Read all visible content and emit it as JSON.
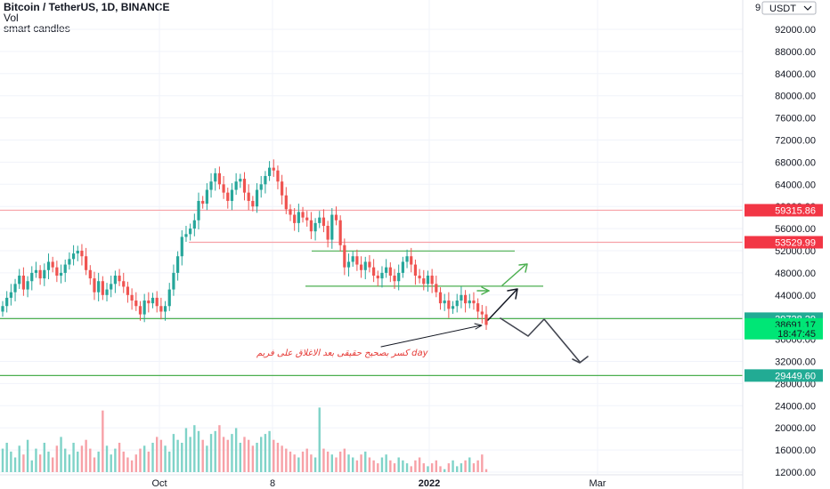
{
  "header": {
    "title": "Bitcoin / TetherUS, 1D, BINANCE",
    "indicator_1": "Vol",
    "indicator_2": "smart candles"
  },
  "chart_data": {
    "type": "candlestick",
    "currency_label": "USDT",
    "ylim": [
      10000,
      96000
    ],
    "y_ticks": [
      "12000.00",
      "16000.00",
      "20000.00",
      "24000.00",
      "28000.00",
      "32000.00",
      "36000.00",
      "40000.00",
      "44000.00",
      "48000.00",
      "52000.00",
      "56000.00",
      "60000.00",
      "64000.00",
      "68000.00",
      "72000.00",
      "76000.00",
      "80000.00",
      "84000.00",
      "88000.00",
      "92000.00"
    ],
    "x_ticks": [
      {
        "label": "Oct",
        "bold": false
      },
      {
        "label": "8",
        "bold": false
      },
      {
        "label": "2022",
        "bold": true
      },
      {
        "label": "Mar",
        "bold": false
      }
    ],
    "price_tags": [
      {
        "label": "59315.86",
        "value": 59316,
        "color": "#f23645"
      },
      {
        "label": "53529.99",
        "value": 53530,
        "color": "#f23645"
      },
      {
        "label": "39728.29",
        "value": 39728,
        "color": "#22ab94"
      },
      {
        "label": "38691.17",
        "value": 38691,
        "color": "#00e676"
      },
      {
        "label": "18:47:45",
        "value": 37100,
        "color": "#00e676"
      },
      {
        "label": "29449.60",
        "value": 29450,
        "color": "#22ab94"
      }
    ],
    "horizontal_levels": [
      {
        "value": 59316,
        "color": "#f7a1a7"
      },
      {
        "value": 53530,
        "color": "#f7a1a7"
      },
      {
        "value": 51950,
        "color": "#4caf50"
      },
      {
        "value": 45600,
        "color": "#4caf50"
      },
      {
        "value": 39728,
        "color": "#4caf50"
      },
      {
        "value": 29450,
        "color": "#4caf50"
      }
    ],
    "candle_path_closes": [
      42000,
      43500,
      44500,
      46000,
      47500,
      45000,
      46500,
      48000,
      48500,
      47000,
      48500,
      50000,
      49000,
      47500,
      48000,
      49500,
      50500,
      51500,
      52000,
      51000,
      48500,
      47000,
      44500,
      46500,
      44000,
      45000,
      46000,
      47500,
      46500,
      45500,
      44000,
      43000,
      42000,
      40500,
      43000,
      42500,
      43500,
      42000,
      41000,
      42000,
      45000,
      48000,
      51000,
      54500,
      55000,
      56000,
      57500,
      61000,
      60500,
      63000,
      64500,
      66000,
      64000,
      62500,
      61000,
      63000,
      64500,
      65000,
      62500,
      61000,
      60000,
      63000,
      64000,
      65500,
      67000,
      66500,
      64500,
      62000,
      59500,
      58500,
      57000,
      59000,
      58000,
      57500,
      55500,
      57000,
      58000,
      56500,
      54000,
      58500,
      57500,
      53000,
      49000,
      50000,
      51000,
      49500,
      48500,
      50000,
      49000,
      47500,
      47000,
      48000,
      49000,
      47500,
      46500,
      48000,
      50000,
      51000,
      49500,
      47500,
      47000,
      46000,
      47500,
      46000,
      44500,
      42500,
      43000,
      41500,
      42000,
      43000,
      44000,
      42500,
      43000,
      42500,
      41000,
      40500,
      38600
    ],
    "volume_path": [
      20,
      22,
      19,
      17,
      21,
      18,
      23,
      16,
      20,
      18,
      22,
      19,
      17,
      21,
      24,
      20,
      18,
      22,
      19,
      21,
      23,
      20,
      17,
      19,
      33,
      21,
      18,
      20,
      22,
      19,
      17,
      16,
      18,
      20,
      21,
      19,
      22,
      24,
      23,
      21,
      19,
      25,
      23,
      22,
      27,
      24,
      28,
      26,
      23,
      21,
      25,
      26,
      28,
      24,
      23,
      25,
      27,
      22,
      24,
      23,
      21,
      22,
      24,
      25,
      26,
      23,
      22,
      21,
      20,
      19,
      18,
      17,
      19,
      20,
      18,
      17,
      34,
      20,
      19,
      18,
      17,
      19,
      20,
      18,
      17,
      16,
      18,
      19,
      17,
      16,
      15,
      17,
      18,
      16,
      15,
      17,
      16,
      15,
      14,
      16,
      17,
      15,
      14,
      15,
      16,
      14,
      13,
      15,
      16,
      14,
      15,
      16,
      17,
      15,
      16,
      18,
      13
    ],
    "projection_green": [
      [
        549,
        328
      ],
      [
        556,
        324
      ]
    ],
    "annotation_text": "کسر بصحیح حقیقی بعد الاغلاق علی فریم day"
  }
}
